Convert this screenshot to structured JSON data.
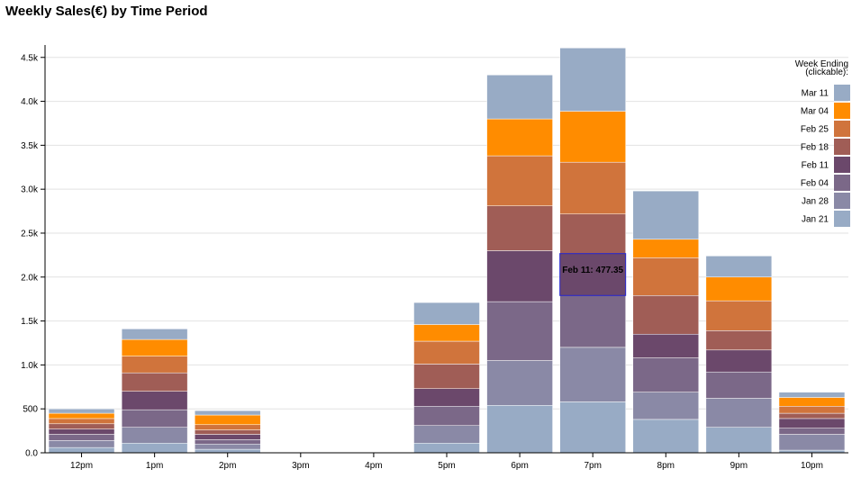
{
  "chart_data": {
    "type": "bar",
    "stacked": true,
    "title": "Weekly Sales(€) by Time Period",
    "xlabel": "",
    "ylabel": "",
    "ylim": [
      0,
      4600
    ],
    "yticks": [
      0,
      500,
      1000,
      1500,
      2000,
      2500,
      3000,
      3500,
      4000,
      4500
    ],
    "ytick_labels": [
      "0.0",
      "500",
      "1.0k",
      "1.5k",
      "2.0k",
      "2.5k",
      "3.0k",
      "3.5k",
      "4.0k",
      "4.5k"
    ],
    "grid": true,
    "categories": [
      "12pm",
      "1pm",
      "2pm",
      "3pm",
      "4pm",
      "5pm",
      "6pm",
      "7pm",
      "8pm",
      "9pm",
      "10pm"
    ],
    "legend_title": [
      "Week Ending",
      "(clickable):"
    ],
    "legend_position": "right",
    "series": [
      {
        "name": "Jan 21",
        "color": "#98abc5",
        "values": [
          60,
          110,
          40,
          0,
          0,
          110,
          540,
          580,
          380,
          290,
          30
        ]
      },
      {
        "name": "Jan 28",
        "color": "#8a89a6",
        "values": [
          80,
          180,
          60,
          0,
          0,
          200,
          510,
          620,
          310,
          330,
          180
        ]
      },
      {
        "name": "Feb 04",
        "color": "#7b6888",
        "values": [
          70,
          200,
          50,
          0,
          0,
          220,
          670,
          590,
          390,
          300,
          70
        ]
      },
      {
        "name": "Feb 11",
        "color": "#6b486b",
        "values": [
          60,
          210,
          60,
          0,
          0,
          200,
          580,
          477.35,
          270,
          250,
          110
        ]
      },
      {
        "name": "Feb 18",
        "color": "#a05d56",
        "values": [
          60,
          210,
          50,
          0,
          0,
          280,
          510,
          450,
          440,
          220,
          60
        ]
      },
      {
        "name": "Feb 25",
        "color": "#d0743c",
        "values": [
          60,
          190,
          60,
          0,
          0,
          260,
          570,
          590,
          430,
          340,
          80
        ]
      },
      {
        "name": "Mar 04",
        "color": "#ff8c00",
        "values": [
          60,
          190,
          110,
          0,
          0,
          190,
          420,
          580,
          210,
          270,
          100
        ]
      },
      {
        "name": "Mar 11",
        "color": "#98abc5",
        "values": [
          50,
          120,
          50,
          0,
          0,
          250,
          500,
          720,
          550,
          240,
          60
        ]
      }
    ],
    "tooltip": {
      "text": "Feb 11: 477.35",
      "series": "Feb 11",
      "category": "7pm"
    }
  }
}
